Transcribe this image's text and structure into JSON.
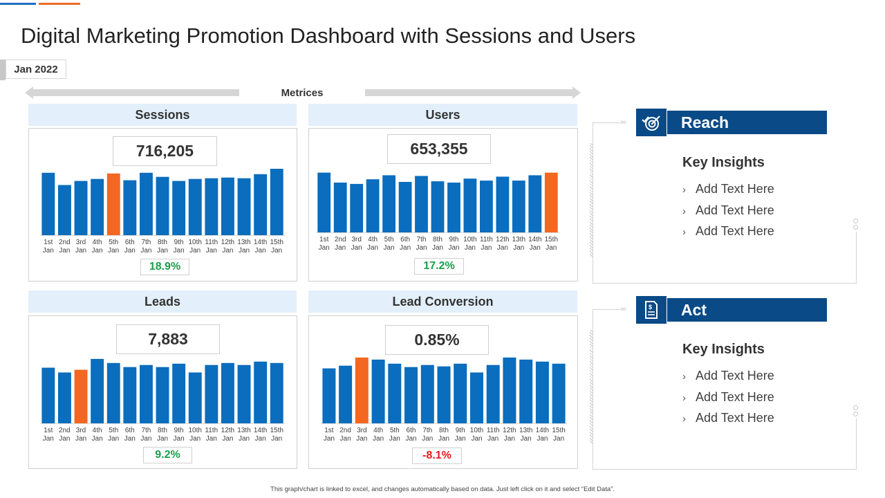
{
  "title": "Digital Marketing Promotion Dashboard with Sessions and Users",
  "date_label": "Jan 2022",
  "metrics_label": "Metrices",
  "colors": {
    "bar": "#0a6dbd",
    "highlight": "#f36722",
    "positive": "#1a9e4b",
    "negative": "#e21c1c",
    "header_bg": "#e3f0fb",
    "side_header": "#0a4a86"
  },
  "chart_data": [
    {
      "type": "bar",
      "title": "Sessions",
      "total": "716,205",
      "change": "18.9%",
      "categories": [
        "1st Jan",
        "2nd Jan",
        "3rd Jan",
        "4th Jan",
        "5th Jan",
        "6th Jan",
        "7th Jan",
        "8th Jan",
        "9th Jan",
        "10th Jan",
        "11th Jan",
        "12th Jan",
        "13th Jan",
        "14th Jan",
        "15th Jan"
      ],
      "values": [
        92,
        74,
        80,
        83,
        91,
        81,
        92,
        86,
        80,
        83,
        84,
        85,
        84,
        90,
        98
      ],
      "highlight_index": 4,
      "ylim": [
        0,
        100
      ]
    },
    {
      "type": "bar",
      "title": "Users",
      "total": "653,355",
      "change": "17.2%",
      "categories": [
        "1st Jan",
        "2nd Jan",
        "3rd Jan",
        "4th Jan",
        "5th Jan",
        "6th Jan",
        "7th Jan",
        "8th Jan",
        "9th Jan",
        "10th Jan",
        "11th Jan",
        "12th Jan",
        "13th Jan",
        "14th Jan",
        "15th Jan"
      ],
      "values": [
        90,
        75,
        73,
        80,
        86,
        76,
        85,
        77,
        75,
        81,
        78,
        84,
        78,
        86,
        90
      ],
      "highlight_index": 14,
      "ylim": [
        0,
        100
      ]
    },
    {
      "type": "bar",
      "title": "Leads",
      "total": "7,883",
      "change": "9.2%",
      "categories": [
        "1st Jan",
        "2nd Jan",
        "3rd Jan",
        "4th Jan",
        "5th Jan",
        "6th Jan",
        "7th Jan",
        "8th Jan",
        "9th Jan",
        "10th Jan",
        "11th Jan",
        "12th Jan",
        "13th Jan",
        "14th Jan",
        "15th Jan"
      ],
      "values": [
        82,
        75,
        79,
        95,
        89,
        83,
        86,
        83,
        88,
        75,
        86,
        89,
        86,
        91,
        89
      ],
      "highlight_index": 2,
      "ylim": [
        0,
        100
      ]
    },
    {
      "type": "bar",
      "title": "Lead Conversion",
      "total": "0.85%",
      "change": "-8.1%",
      "categories": [
        "1st Jan",
        "2nd Jan",
        "3rd Jan",
        "4th Jan",
        "5th Jan",
        "6th Jan",
        "7th Jan",
        "8th Jan",
        "9th Jan",
        "10th Jan",
        "11th Jan",
        "12th Jan",
        "13th Jan",
        "14th Jan",
        "15th Jan"
      ],
      "values": [
        81,
        85,
        97,
        94,
        88,
        83,
        86,
        84,
        88,
        75,
        86,
        97,
        94,
        91,
        88
      ],
      "highlight_index": 2,
      "ylim": [
        0,
        100
      ]
    }
  ],
  "side_cards": [
    {
      "header": "Reach",
      "icon": "target-check-icon",
      "insights_title": "Key Insights",
      "items": [
        "Add Text Here",
        "Add Text Here",
        "Add Text Here"
      ]
    },
    {
      "header": "Act",
      "icon": "document-dollar-icon",
      "insights_title": "Key Insights",
      "items": [
        "Add Text Here",
        "Add Text Here",
        "Add Text Here"
      ]
    }
  ],
  "footer": "This graph/chart is linked to excel, and changes automatically based on data. Just left click on it and select “Edit Data”."
}
